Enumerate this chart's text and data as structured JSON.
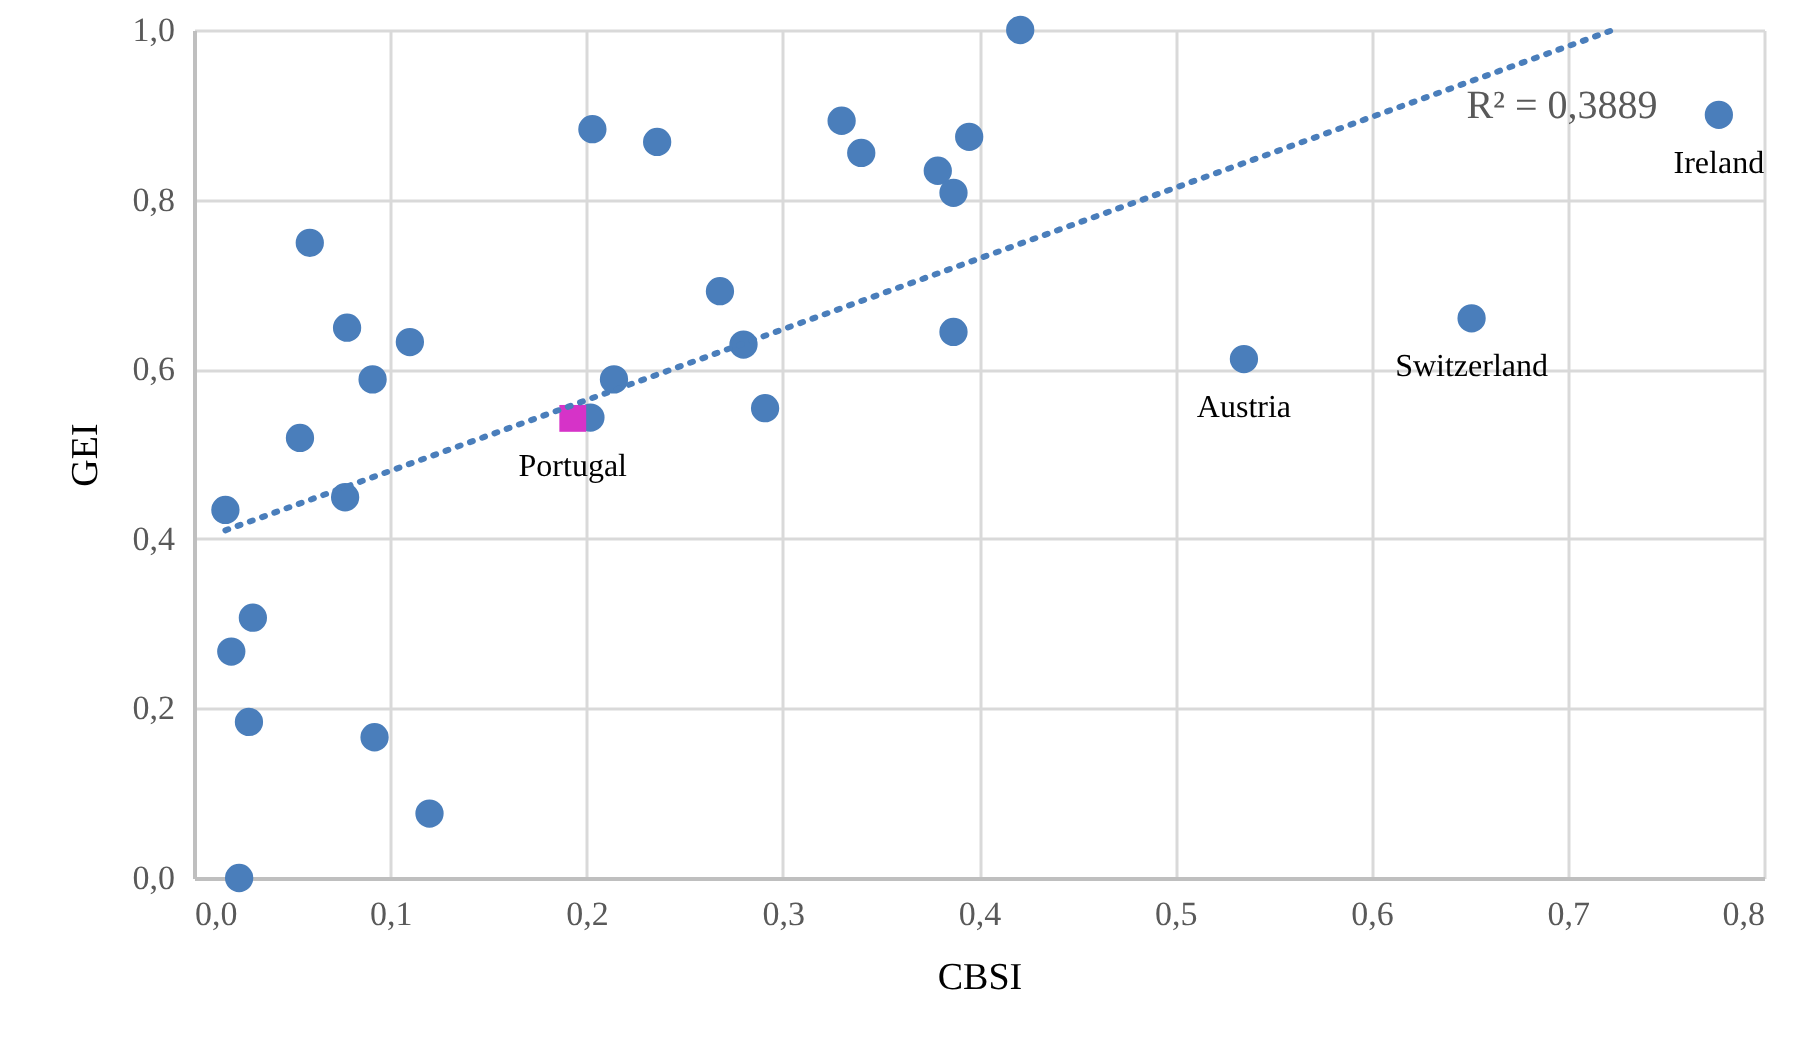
{
  "chart_data": {
    "type": "scatter",
    "xlabel": "CBSI",
    "ylabel": "GEI",
    "xlim": [
      0,
      0.8
    ],
    "ylim": [
      0,
      1
    ],
    "xticks": [
      {
        "value": 0,
        "label": "0,0"
      },
      {
        "value": 0.1,
        "label": "0,1"
      },
      {
        "value": 0.2,
        "label": "0,2"
      },
      {
        "value": 0.3,
        "label": "0,3"
      },
      {
        "value": 0.4,
        "label": "0,4"
      },
      {
        "value": 0.5,
        "label": "0,5"
      },
      {
        "value": 0.6,
        "label": "0,6"
      },
      {
        "value": 0.7,
        "label": "0,7"
      },
      {
        "value": 0.8,
        "label": "0,8"
      }
    ],
    "yticks": [
      {
        "value": 0,
        "label": "0,0"
      },
      {
        "value": 0.2,
        "label": "0,2"
      },
      {
        "value": 0.4,
        "label": "0,4"
      },
      {
        "value": 0.6,
        "label": "0,6"
      },
      {
        "value": 0.8,
        "label": "0,8"
      },
      {
        "value": 1,
        "label": "1,0"
      }
    ],
    "grid": true,
    "series": [
      {
        "color": "#4a7ebb",
        "marker": "circle",
        "x": [
          0.203,
          0.236,
          0.059,
          0.078,
          0.11,
          0.091,
          0.054,
          0.016,
          0.077,
          0.268,
          0.28,
          0.214,
          0.202,
          0.291,
          0.03,
          0.019,
          0.028,
          0.092,
          0.12,
          0.023,
          0.421,
          0.33,
          0.34,
          0.395,
          0.379,
          0.387,
          0.387,
          0.535,
          0.651,
          0.777
        ],
        "values": [
          0.883,
          0.868,
          0.749,
          0.649,
          0.632,
          0.588,
          0.519,
          0.434,
          0.449,
          0.692,
          0.629,
          0.588,
          0.543,
          0.554,
          0.307,
          0.267,
          0.184,
          0.166,
          0.076,
          0.0,
          1.0,
          0.893,
          0.855,
          0.874,
          0.834,
          0.808,
          0.644,
          0.612,
          0.66,
          0.9
        ]
      },
      {
        "color": "#d633c8",
        "marker": "square",
        "x": [
          0.193
        ],
        "values": [
          0.542
        ]
      },
      {
        "type": "line",
        "color": "#4a7ebb",
        "line_style": "dotted",
        "x": [
          0.016,
          0.723
        ],
        "values": [
          0.41,
          1.0
        ]
      }
    ],
    "annotations": [
      {
        "text": "Portugal",
        "x": 0.193,
        "y": 0.542
      },
      {
        "text": "Austria",
        "x": 0.535,
        "y": 0.612
      },
      {
        "text": "Switzerland",
        "x": 0.651,
        "y": 0.66
      },
      {
        "text": "Ireland",
        "x": 0.777,
        "y": 0.9
      },
      "R² = 0,3889"
    ]
  }
}
